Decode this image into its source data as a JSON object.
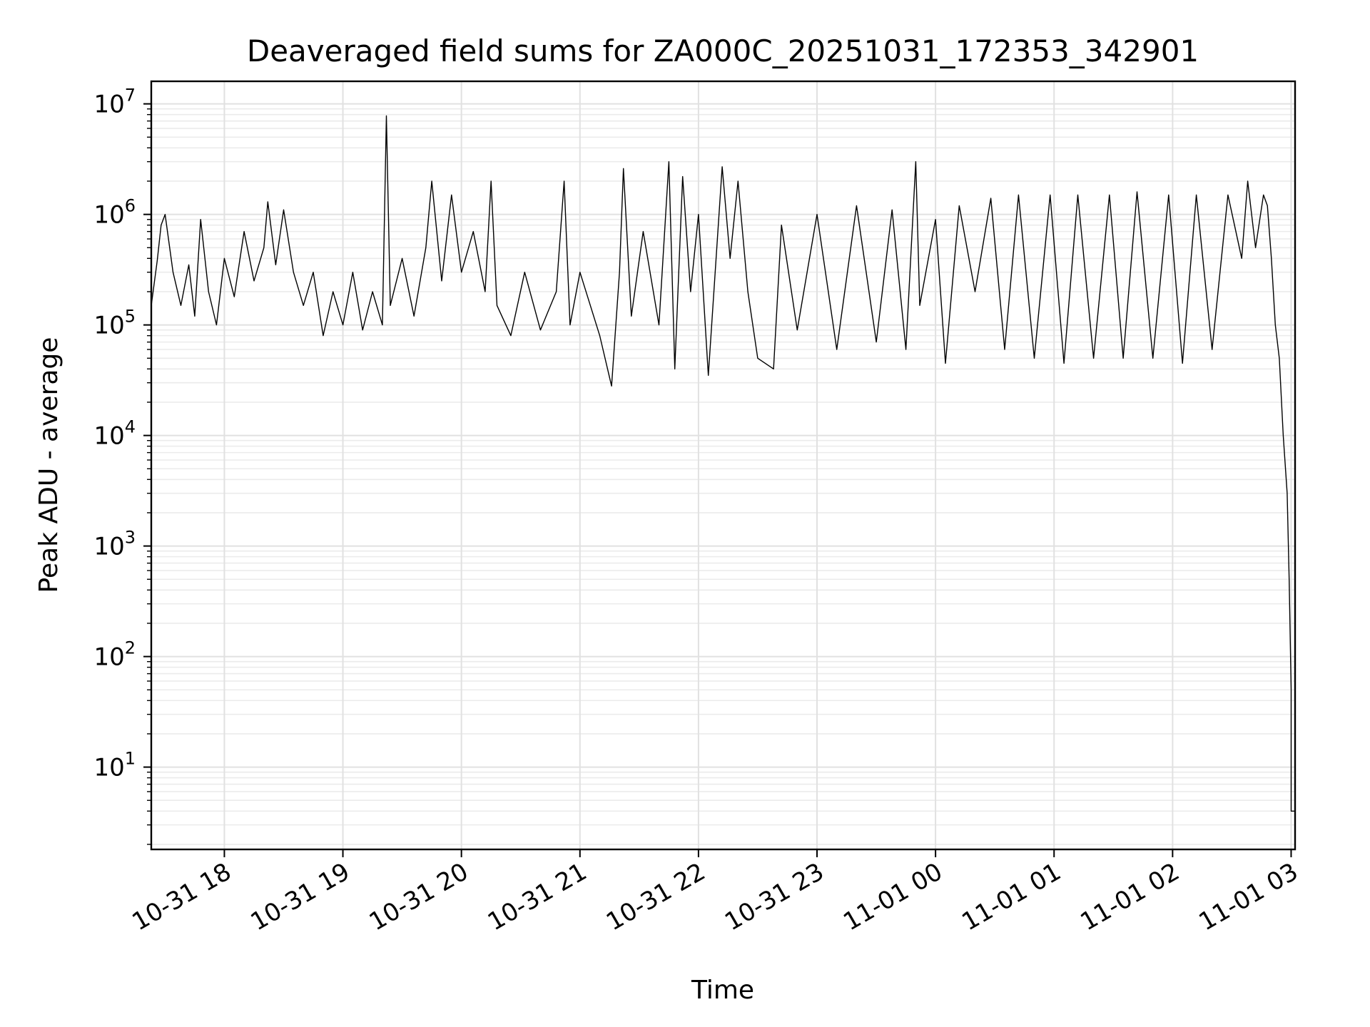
{
  "chart_data": {
    "type": "line",
    "title": "Deaveraged field sums for ZA000C_20251031_172353_342901",
    "xlabel": "Time",
    "ylabel": "Peak ADU - average",
    "yscale": "log",
    "grid": true,
    "ylim": [
      1.8,
      16000000
    ],
    "xlim": [
      "2025-10-31T17:23",
      "2025-11-01T03:02"
    ],
    "x_ticks": [
      {
        "t": "2025-10-31T18:00",
        "label": "10-31 18"
      },
      {
        "t": "2025-10-31T19:00",
        "label": "10-31 19"
      },
      {
        "t": "2025-10-31T20:00",
        "label": "10-31 20"
      },
      {
        "t": "2025-10-31T21:00",
        "label": "10-31 21"
      },
      {
        "t": "2025-10-31T22:00",
        "label": "10-31 22"
      },
      {
        "t": "2025-10-31T23:00",
        "label": "10-31 23"
      },
      {
        "t": "2025-11-01T00:00",
        "label": "11-01 00"
      },
      {
        "t": "2025-11-01T01:00",
        "label": "11-01 01"
      },
      {
        "t": "2025-11-01T02:00",
        "label": "11-01 02"
      },
      {
        "t": "2025-11-01T03:00",
        "label": "11-01 03"
      }
    ],
    "y_ticks": [
      {
        "value": 10,
        "base": "10",
        "exp": "1"
      },
      {
        "value": 100,
        "base": "10",
        "exp": "2"
      },
      {
        "value": 1000,
        "base": "10",
        "exp": "3"
      },
      {
        "value": 10000,
        "base": "10",
        "exp": "4"
      },
      {
        "value": 100000,
        "base": "10",
        "exp": "5"
      },
      {
        "value": 1000000,
        "base": "10",
        "exp": "6"
      },
      {
        "value": 10000000,
        "base": "10",
        "exp": "7"
      }
    ],
    "series": [
      {
        "color": "#000000",
        "points": [
          [
            "2025-10-31T17:23",
            150000
          ],
          [
            "2025-10-31T17:26",
            380000
          ],
          [
            "2025-10-31T17:28",
            800000
          ],
          [
            "2025-10-31T17:30",
            1000000
          ],
          [
            "2025-10-31T17:34",
            300000
          ],
          [
            "2025-10-31T17:38",
            150000
          ],
          [
            "2025-10-31T17:42",
            350000
          ],
          [
            "2025-10-31T17:45",
            120000
          ],
          [
            "2025-10-31T17:48",
            900000
          ],
          [
            "2025-10-31T17:52",
            200000
          ],
          [
            "2025-10-31T17:56",
            100000
          ],
          [
            "2025-10-31T18:00",
            400000
          ],
          [
            "2025-10-31T18:05",
            180000
          ],
          [
            "2025-10-31T18:10",
            700000
          ],
          [
            "2025-10-31T18:15",
            250000
          ],
          [
            "2025-10-31T18:20",
            500000
          ],
          [
            "2025-10-31T18:22",
            1300000
          ],
          [
            "2025-10-31T18:26",
            350000
          ],
          [
            "2025-10-31T18:30",
            1100000
          ],
          [
            "2025-10-31T18:35",
            300000
          ],
          [
            "2025-10-31T18:40",
            150000
          ],
          [
            "2025-10-31T18:45",
            300000
          ],
          [
            "2025-10-31T18:50",
            80000
          ],
          [
            "2025-10-31T18:55",
            200000
          ],
          [
            "2025-10-31T19:00",
            100000
          ],
          [
            "2025-10-31T19:05",
            300000
          ],
          [
            "2025-10-31T19:10",
            90000
          ],
          [
            "2025-10-31T19:15",
            200000
          ],
          [
            "2025-10-31T19:20",
            100000
          ],
          [
            "2025-10-31T19:22",
            7800000
          ],
          [
            "2025-10-31T19:24",
            150000
          ],
          [
            "2025-10-31T19:30",
            400000
          ],
          [
            "2025-10-31T19:36",
            120000
          ],
          [
            "2025-10-31T19:42",
            500000
          ],
          [
            "2025-10-31T19:45",
            2000000
          ],
          [
            "2025-10-31T19:50",
            250000
          ],
          [
            "2025-10-31T19:55",
            1500000
          ],
          [
            "2025-10-31T20:00",
            300000
          ],
          [
            "2025-10-31T20:06",
            700000
          ],
          [
            "2025-10-31T20:12",
            200000
          ],
          [
            "2025-10-31T20:15",
            2000000
          ],
          [
            "2025-10-31T20:18",
            150000
          ],
          [
            "2025-10-31T20:25",
            80000
          ],
          [
            "2025-10-31T20:32",
            300000
          ],
          [
            "2025-10-31T20:40",
            90000
          ],
          [
            "2025-10-31T20:48",
            200000
          ],
          [
            "2025-10-31T20:52",
            2000000
          ],
          [
            "2025-10-31T20:55",
            100000
          ],
          [
            "2025-10-31T21:00",
            300000
          ],
          [
            "2025-10-31T21:10",
            80000
          ],
          [
            "2025-10-31T21:16",
            28000
          ],
          [
            "2025-10-31T21:20",
            300000
          ],
          [
            "2025-10-31T21:22",
            2600000
          ],
          [
            "2025-10-31T21:26",
            120000
          ],
          [
            "2025-10-31T21:32",
            700000
          ],
          [
            "2025-10-31T21:40",
            100000
          ],
          [
            "2025-10-31T21:45",
            3000000
          ],
          [
            "2025-10-31T21:48",
            40000
          ],
          [
            "2025-10-31T21:52",
            2200000
          ],
          [
            "2025-10-31T21:56",
            200000
          ],
          [
            "2025-10-31T22:00",
            1000000
          ],
          [
            "2025-10-31T22:05",
            35000
          ],
          [
            "2025-10-31T22:12",
            2700000
          ],
          [
            "2025-10-31T22:16",
            400000
          ],
          [
            "2025-10-31T22:20",
            2000000
          ],
          [
            "2025-10-31T22:25",
            200000
          ],
          [
            "2025-10-31T22:30",
            50000
          ],
          [
            "2025-10-31T22:38",
            40000
          ],
          [
            "2025-10-31T22:42",
            800000
          ],
          [
            "2025-10-31T22:50",
            90000
          ],
          [
            "2025-10-31T23:00",
            1000000
          ],
          [
            "2025-10-31T23:10",
            60000
          ],
          [
            "2025-10-31T23:20",
            1200000
          ],
          [
            "2025-10-31T23:30",
            70000
          ],
          [
            "2025-10-31T23:38",
            1100000
          ],
          [
            "2025-10-31T23:45",
            60000
          ],
          [
            "2025-10-31T23:50",
            3000000
          ],
          [
            "2025-10-31T23:52",
            150000
          ],
          [
            "2025-11-01T00:00",
            900000
          ],
          [
            "2025-11-01T00:05",
            45000
          ],
          [
            "2025-11-01T00:12",
            1200000
          ],
          [
            "2025-11-01T00:20",
            200000
          ],
          [
            "2025-11-01T00:28",
            1400000
          ],
          [
            "2025-11-01T00:35",
            60000
          ],
          [
            "2025-11-01T00:42",
            1500000
          ],
          [
            "2025-11-01T00:50",
            50000
          ],
          [
            "2025-11-01T00:58",
            1500000
          ],
          [
            "2025-11-01T01:05",
            45000
          ],
          [
            "2025-11-01T01:12",
            1500000
          ],
          [
            "2025-11-01T01:20",
            50000
          ],
          [
            "2025-11-01T01:28",
            1500000
          ],
          [
            "2025-11-01T01:35",
            50000
          ],
          [
            "2025-11-01T01:42",
            1600000
          ],
          [
            "2025-11-01T01:50",
            50000
          ],
          [
            "2025-11-01T01:58",
            1500000
          ],
          [
            "2025-11-01T02:05",
            45000
          ],
          [
            "2025-11-01T02:12",
            1500000
          ],
          [
            "2025-11-01T02:20",
            60000
          ],
          [
            "2025-11-01T02:28",
            1500000
          ],
          [
            "2025-11-01T02:35",
            400000
          ],
          [
            "2025-11-01T02:38",
            2000000
          ],
          [
            "2025-11-01T02:42",
            500000
          ],
          [
            "2025-11-01T02:46",
            1500000
          ],
          [
            "2025-11-01T02:48",
            1200000
          ],
          [
            "2025-11-01T02:50",
            400000
          ],
          [
            "2025-11-01T02:52",
            100000
          ],
          [
            "2025-11-01T02:54",
            50000
          ],
          [
            "2025-11-01T02:56",
            10000
          ],
          [
            "2025-11-01T02:58",
            3000
          ],
          [
            "2025-11-01T02:59",
            500
          ],
          [
            "2025-11-01T03:00",
            50
          ],
          [
            "2025-11-01T03:00",
            4
          ],
          [
            "2025-11-01T03:02",
            4
          ]
        ]
      }
    ]
  }
}
